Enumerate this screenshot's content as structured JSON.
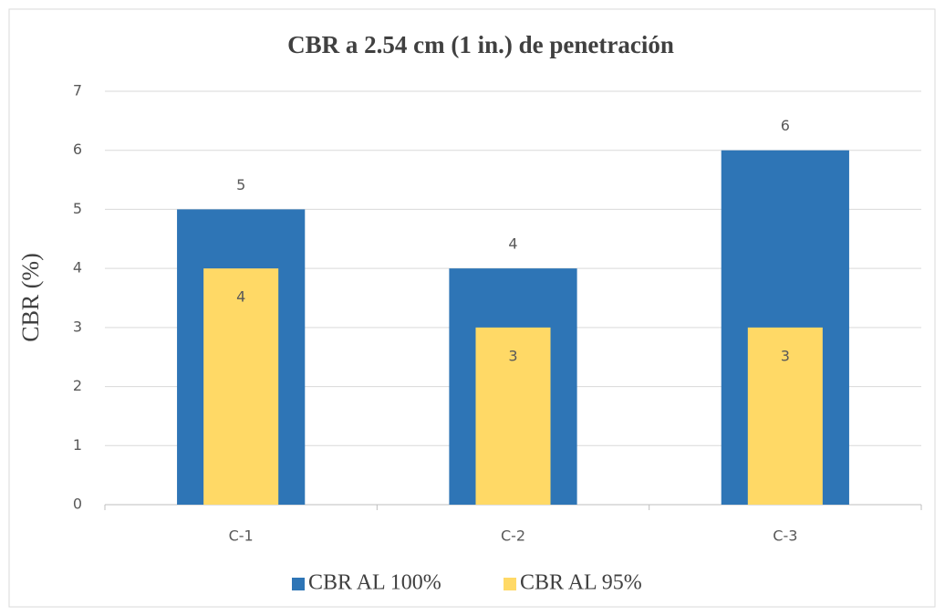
{
  "chart_data": {
    "type": "bar",
    "title": "CBR a 2.54 cm (1 in.) de penetración",
    "ylabel": "CBR (%)",
    "categories": [
      "C-1",
      "C-2",
      "C-3"
    ],
    "series": [
      {
        "name": "CBR AL 100%",
        "color": "#2e75b6",
        "values": [
          5,
          4,
          6
        ]
      },
      {
        "name": "CBR AL 95%",
        "color": "#ffd966",
        "values": [
          4,
          3,
          3
        ]
      }
    ],
    "ylim": [
      0,
      7
    ],
    "yticks": [
      0,
      1,
      2,
      3,
      4,
      5,
      6,
      7
    ],
    "grid": true,
    "legend": "bottom"
  }
}
